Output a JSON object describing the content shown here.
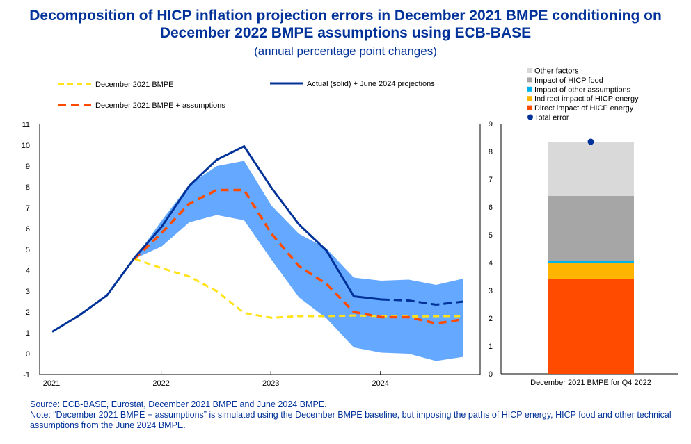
{
  "title": "Decomposition of HICP inflation projection errors in December 2021 BMPE conditioning on December 2022 BMPE assumptions using ECB-BASE",
  "subtitle": "(annual percentage point changes)",
  "colors": {
    "dec2021": "#FFE21A",
    "assumptions": "#FF4B00",
    "actual": "#003299",
    "band": "#65A8FF",
    "other_factors": "#D9D9D9",
    "hicp_food": "#A6A6A6",
    "other_assumptions": "#00B1EA",
    "indirect_energy": "#FFB400",
    "direct_energy": "#FF4B00",
    "total_error": "#003299"
  },
  "chart_data": [
    {
      "type": "line",
      "x_ticks": [
        "2021",
        "2022",
        "2023",
        "2024"
      ],
      "ylim": [
        -1,
        11
      ],
      "y_ticks": [
        -1,
        0,
        1,
        2,
        3,
        4,
        5,
        6,
        7,
        8,
        9,
        10,
        11
      ],
      "x_quarters": [
        "2021Q1",
        "2021Q2",
        "2021Q3",
        "2021Q4",
        "2022Q1",
        "2022Q2",
        "2022Q3",
        "2022Q4",
        "2023Q1",
        "2023Q2",
        "2023Q3",
        "2023Q4",
        "2024Q1",
        "2024Q2",
        "2024Q3",
        "2024Q4"
      ],
      "series": [
        {
          "name": "December 2021 BMPE",
          "style": "dashed",
          "start_index": 3,
          "values": [
            4.55,
            4.1,
            3.7,
            3.0,
            1.95,
            1.72,
            1.8,
            1.8,
            1.83,
            1.8,
            1.78,
            1.8,
            1.8
          ]
        },
        {
          "name": "December 2021 BMPE + assumptions",
          "style": "dashed",
          "start_index": 3,
          "values": [
            4.55,
            5.8,
            7.2,
            7.85,
            7.85,
            5.75,
            4.2,
            3.35,
            2.0,
            1.75,
            1.75,
            1.45,
            1.65
          ]
        },
        {
          "name": "Actual (solid) + June 2024 projections",
          "style": "solid",
          "start_index": 0,
          "solid_until": 13,
          "values": [
            1.05,
            1.85,
            2.8,
            4.6,
            6.1,
            8.05,
            9.3,
            9.95,
            7.95,
            6.2,
            4.95,
            2.75,
            2.6,
            2.55,
            2.35,
            2.5
          ]
        }
      ],
      "band": {
        "start_index": 3,
        "lower": [
          4.55,
          5.15,
          6.3,
          6.65,
          6.4,
          4.5,
          2.7,
          1.7,
          0.3,
          0.05,
          0.0,
          -0.35,
          -0.15
        ],
        "upper": [
          4.55,
          6.4,
          8.1,
          9.0,
          9.25,
          7.1,
          5.75,
          5.05,
          3.65,
          3.5,
          3.55,
          3.3,
          3.6
        ]
      }
    },
    {
      "type": "bar",
      "stacked": true,
      "categories": [
        "December 2021 BMPE  for Q4 2022"
      ],
      "ylim": [
        0,
        9
      ],
      "y_ticks": [
        0,
        1,
        2,
        3,
        4,
        5,
        6,
        7,
        8,
        9
      ],
      "series": [
        {
          "name": "Direct impact of HICP energy",
          "values": [
            3.4
          ]
        },
        {
          "name": "Indirect impact of HICP energy",
          "values": [
            0.58
          ]
        },
        {
          "name": "Impact of other assumptions",
          "values": [
            0.07
          ]
        },
        {
          "name": "Impact of HICP  food",
          "values": [
            2.35
          ]
        },
        {
          "name": "Other factors",
          "values": [
            1.95
          ]
        }
      ],
      "total": {
        "name": "Total error",
        "value": 8.35
      },
      "legend_order": [
        "Other factors",
        "Impact of HICP  food",
        "Impact of other assumptions",
        "Indirect impact of HICP energy",
        "Direct impact of HICP energy",
        "Total error"
      ]
    }
  ],
  "footer": {
    "source": "Source: ECB-BASE, Eurostat, December 2021 BMPE and June 2024 BMPE.",
    "note": "Note: “December 2021 BMPE + assumptions” is simulated using the December BMPE baseline, but imposing the paths of HICP energy, HICP food and other technical assumptions from the June 2024 BMPE."
  }
}
